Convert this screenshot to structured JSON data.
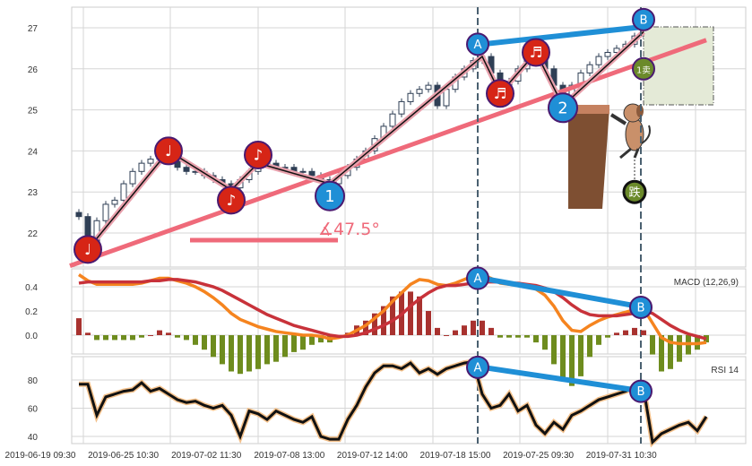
{
  "chart_data": {
    "type": "candlestick",
    "x_tick_labels": [
      "2019-06-19 09:30",
      "2019-06-25 10:30",
      "2019-07-02 11:30",
      "2019-07-08 13:00",
      "2019-07-12 14:00",
      "2019-07-18 15:00",
      "2019-07-25 09:30",
      "2019-07-31 10:30"
    ],
    "price": {
      "ylim": [
        21.2,
        27.5
      ],
      "yticks": [
        22,
        23,
        24,
        25,
        26,
        27
      ],
      "closes": [
        22.4,
        21.8,
        22.3,
        22.7,
        22.8,
        23.2,
        23.5,
        23.7,
        23.8,
        23.9,
        23.8,
        23.6,
        23.5,
        23.5,
        23.4,
        23.3,
        23.2,
        23.1,
        23.3,
        23.5,
        23.7,
        23.7,
        23.6,
        23.6,
        23.5,
        23.5,
        23.4,
        23.3,
        23.2,
        23.4,
        23.6,
        23.8,
        24.0,
        24.3,
        24.6,
        24.9,
        25.2,
        25.4,
        25.5,
        25.6,
        25.1,
        25.5,
        25.8,
        26.0,
        26.2,
        26.3,
        25.9,
        25.5,
        25.7,
        26.0,
        26.2,
        26.3,
        26.0,
        25.6,
        25.2,
        25.6,
        25.9,
        26.1,
        26.3,
        26.4,
        26.5,
        26.6,
        26.8,
        26.9,
        25.9,
        25.5,
        25.7,
        25.9,
        25.9,
        25.7,
        26.0
      ],
      "zigzag": [
        [
          1,
          21.6
        ],
        [
          10,
          24.0
        ],
        [
          17,
          23.05
        ],
        [
          20,
          23.7
        ],
        [
          28,
          23.2
        ],
        [
          45,
          26.3
        ],
        [
          47,
          25.4
        ],
        [
          51,
          26.4
        ],
        [
          54,
          25.1
        ],
        [
          63,
          26.9
        ]
      ],
      "trendline": [
        [
          -1,
          21.2
        ],
        [
          70,
          26.7
        ]
      ],
      "angle_label": "∡47.5°",
      "markers": [
        {
          "i": 1,
          "v": 21.6,
          "label": "♩",
          "kind": "red"
        },
        {
          "i": 10,
          "v": 24.0,
          "label": "♩",
          "kind": "red"
        },
        {
          "i": 17,
          "v": 22.8,
          "label": "♪",
          "kind": "red"
        },
        {
          "i": 20,
          "v": 23.9,
          "label": "♪",
          "kind": "red"
        },
        {
          "i": 28,
          "v": 22.9,
          "label": "1",
          "kind": "blue"
        },
        {
          "i": 45,
          "v": 26.6,
          "label": "A",
          "kind": "blue"
        },
        {
          "i": 47,
          "v": 25.4,
          "label": "♬",
          "kind": "red"
        },
        {
          "i": 51,
          "v": 26.4,
          "label": "♬",
          "kind": "red"
        },
        {
          "i": 54,
          "v": 25.05,
          "label": "2",
          "kind": "blue"
        },
        {
          "i": 63,
          "v": 27.2,
          "label": "B",
          "kind": "blue"
        },
        {
          "i": 63,
          "v": 26.0,
          "label": "1卖",
          "kind": "green"
        },
        {
          "i": 62,
          "v": 23.0,
          "label": "跌",
          "kind": "dark"
        }
      ]
    },
    "macd": {
      "title": "MACD (12,26,9)",
      "ylim": [
        -0.15,
        0.52
      ],
      "yticks": [
        0.0,
        0.2,
        0.4
      ],
      "dif": [
        0.5,
        0.45,
        0.42,
        0.42,
        0.42,
        0.42,
        0.42,
        0.43,
        0.45,
        0.47,
        0.47,
        0.45,
        0.43,
        0.4,
        0.36,
        0.31,
        0.25,
        0.18,
        0.13,
        0.1,
        0.07,
        0.05,
        0.03,
        0.02,
        0.01,
        0.0,
        0.0,
        -0.01,
        -0.03,
        -0.02,
        0.0,
        0.04,
        0.08,
        0.14,
        0.2,
        0.28,
        0.35,
        0.42,
        0.46,
        0.45,
        0.42,
        0.41,
        0.43,
        0.46,
        0.49,
        0.5,
        0.47,
        0.43,
        0.42,
        0.42,
        0.41,
        0.38,
        0.33,
        0.24,
        0.12,
        0.04,
        0.03,
        0.08,
        0.12,
        0.15,
        0.17,
        0.19,
        0.21,
        0.22,
        0.1,
        -0.02,
        -0.06,
        -0.07,
        -0.07,
        -0.07,
        -0.06
      ],
      "dea": [
        0.43,
        0.44,
        0.44,
        0.44,
        0.44,
        0.44,
        0.44,
        0.44,
        0.45,
        0.45,
        0.46,
        0.46,
        0.45,
        0.44,
        0.42,
        0.4,
        0.37,
        0.33,
        0.29,
        0.25,
        0.21,
        0.17,
        0.14,
        0.11,
        0.08,
        0.06,
        0.04,
        0.02,
        0.0,
        -0.01,
        -0.01,
        0.0,
        0.02,
        0.05,
        0.08,
        0.12,
        0.17,
        0.24,
        0.3,
        0.35,
        0.39,
        0.41,
        0.41,
        0.42,
        0.43,
        0.44,
        0.44,
        0.44,
        0.43,
        0.43,
        0.42,
        0.41,
        0.39,
        0.36,
        0.31,
        0.25,
        0.2,
        0.17,
        0.16,
        0.16,
        0.16,
        0.17,
        0.18,
        0.2,
        0.18,
        0.13,
        0.08,
        0.04,
        0.01,
        -0.01,
        -0.03
      ],
      "markers": [
        {
          "i": 45,
          "v": 0.47,
          "label": "A"
        },
        {
          "i": 63,
          "v": 0.23,
          "label": "B"
        }
      ]
    },
    "rsi": {
      "title": "RSI 14",
      "ylim": [
        33,
        97
      ],
      "yticks": [
        40,
        60,
        80
      ],
      "values": [
        77,
        77,
        55,
        68,
        70,
        72,
        73,
        78,
        72,
        74,
        70,
        66,
        64,
        65,
        62,
        60,
        62,
        55,
        40,
        58,
        56,
        52,
        58,
        55,
        52,
        50,
        54,
        40,
        38,
        38,
        52,
        62,
        75,
        85,
        90,
        90,
        88,
        92,
        85,
        88,
        84,
        88,
        90,
        92,
        93,
        70,
        60,
        62,
        70,
        58,
        62,
        48,
        42,
        50,
        45,
        55,
        58,
        62,
        66,
        68,
        70,
        72,
        75,
        74,
        36,
        42,
        45,
        48,
        50,
        44,
        54
      ],
      "markers": [
        {
          "i": 45,
          "v": 89,
          "label": "A"
        },
        {
          "i": 63,
          "v": 72,
          "label": "B"
        }
      ]
    },
    "divergence_lines": [
      "A",
      "B"
    ],
    "colors": {
      "up": "#2f3f55",
      "grid": "#d6d6d6",
      "dif": "#f5841f",
      "dea": "#c8323a",
      "hist_pos": "#a8322f",
      "hist_neg": "#6e8c1e",
      "trend": "#ef6a7a",
      "zigzag": "#e8a0ac",
      "blue": "#1f8fd6",
      "red": "#d62516",
      "green": "#6b8a2a"
    }
  }
}
